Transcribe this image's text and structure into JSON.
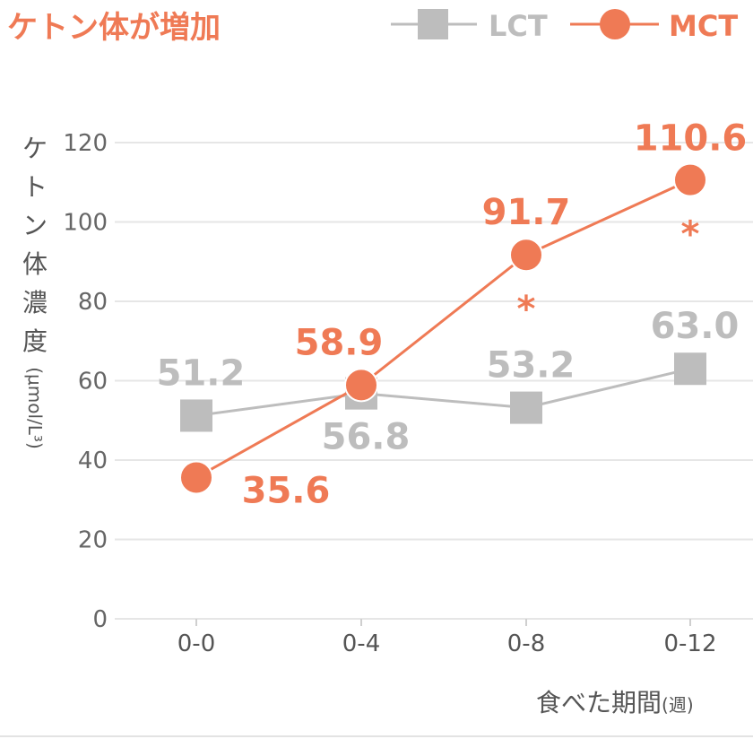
{
  "chart_data": {
    "type": "line",
    "title": "ケトン体が増加",
    "categories": [
      "0-0",
      "0-4",
      "0-8",
      "0-12"
    ],
    "xlabel": "食べた期間",
    "xlabel_unit": "(週)",
    "ylabel": "ケトン体濃度",
    "ylabel_unit": "(μmol/L³)",
    "ylim": [
      0,
      120
    ],
    "yticks": [
      0,
      20,
      40,
      60,
      80,
      100,
      120
    ],
    "grid": true,
    "legend_position": "top-right",
    "series": [
      {
        "name": "LCT",
        "marker": "square",
        "color": "#bdbdbd",
        "values": [
          51.2,
          56.8,
          53.2,
          63.0
        ],
        "labels": [
          "51.2",
          "56.8",
          "53.2",
          "63.0"
        ]
      },
      {
        "name": "MCT",
        "marker": "circle",
        "color": "#ef7a55",
        "values": [
          35.6,
          58.9,
          91.7,
          110.6
        ],
        "labels": [
          "35.6",
          "58.9",
          "91.7",
          "110.6"
        ]
      }
    ],
    "annotations": [
      {
        "text": "*",
        "category": "0-8",
        "series": "MCT"
      },
      {
        "text": "*",
        "category": "0-12",
        "series": "MCT"
      }
    ]
  }
}
